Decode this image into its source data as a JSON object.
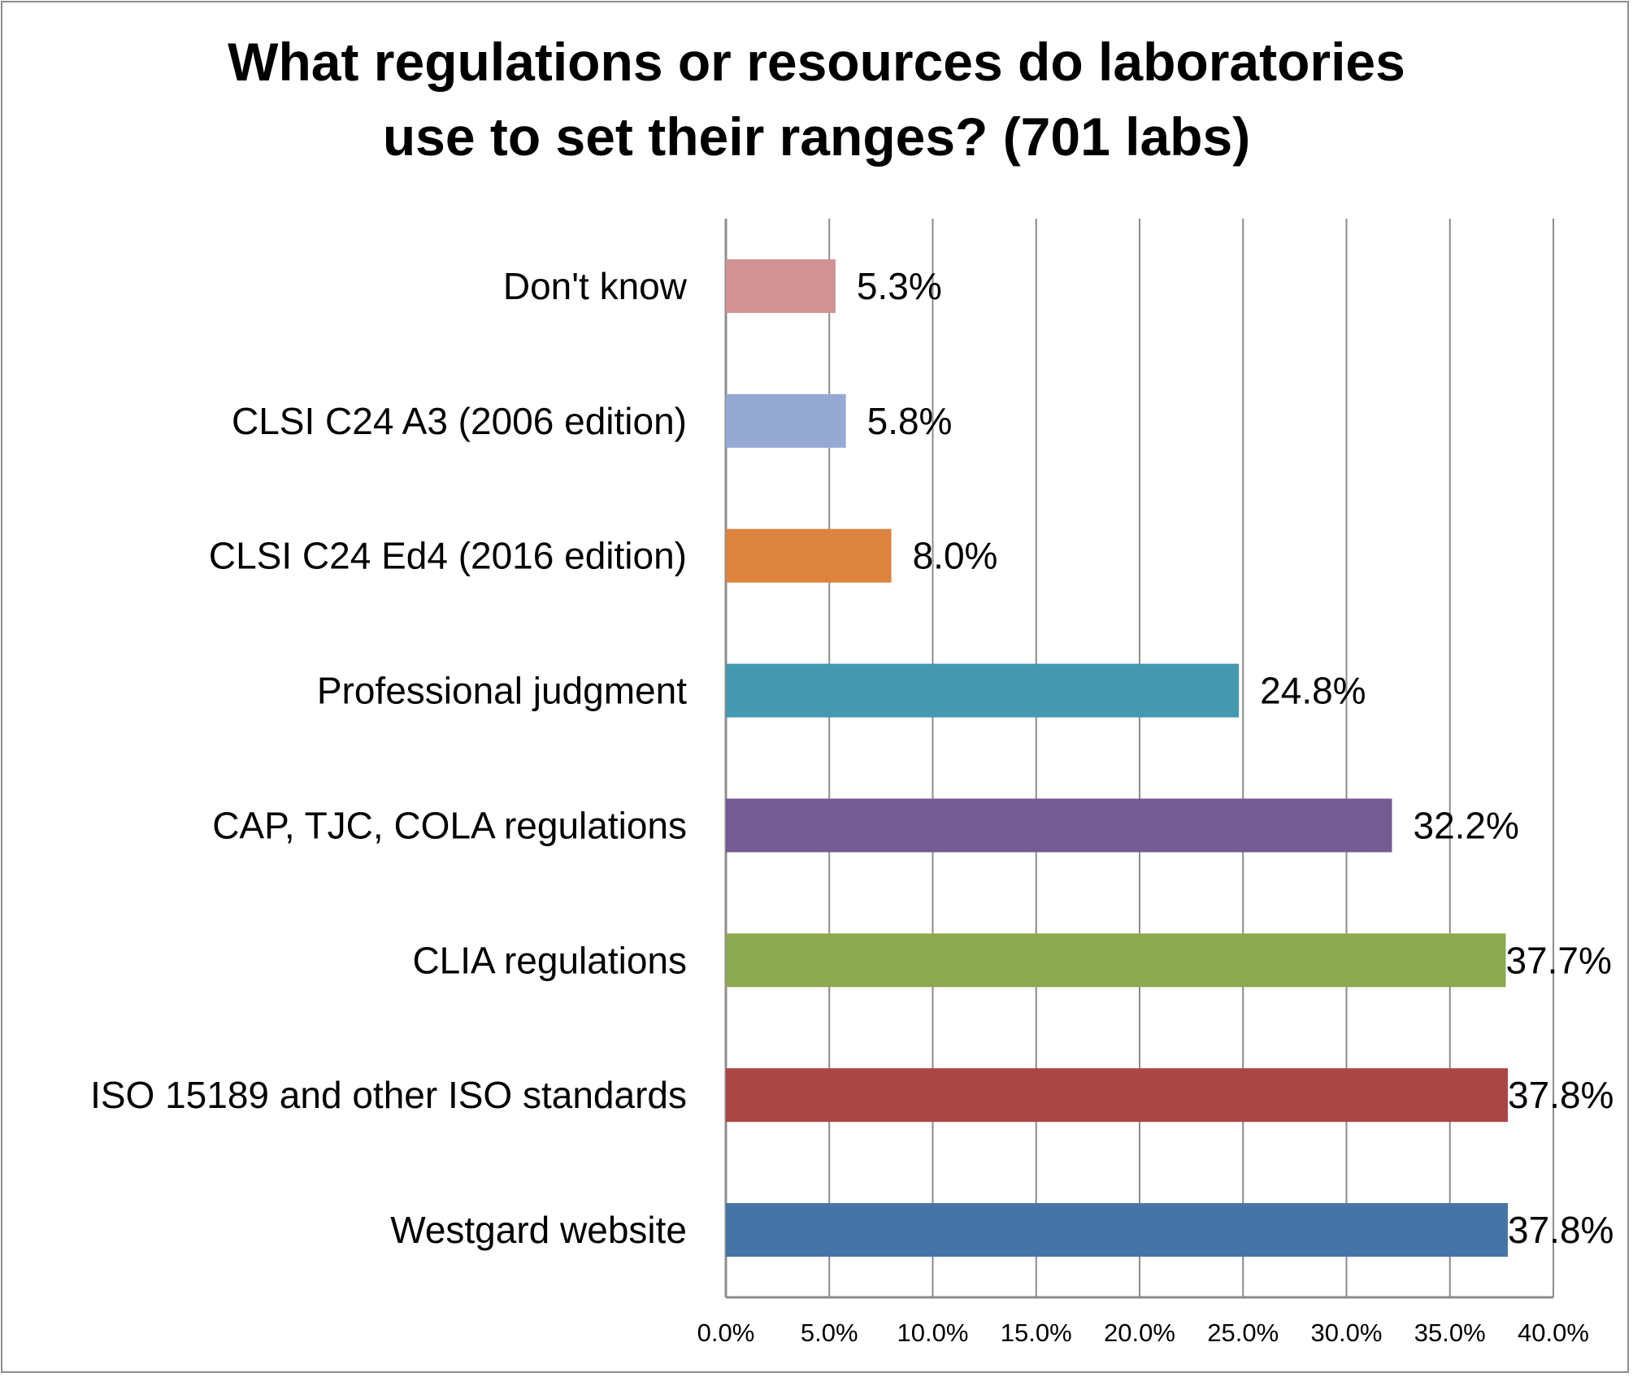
{
  "chart_data": {
    "type": "bar",
    "orientation": "horizontal",
    "title": "What regulations or resources do laboratories use to set their ranges? (701 labs)",
    "title_lines": [
      "What regulations or resources do laboratories",
      "use to set their ranges? (701 labs)"
    ],
    "categories": [
      "Don't know",
      "CLSI C24 A3 (2006 edition)",
      "CLSI C24 Ed4 (2016 edition)",
      "Professional judgment",
      "CAP, TJC, COLA regulations",
      "CLIA regulations",
      "ISO 15189 and other ISO standards",
      "Westgard website"
    ],
    "values": [
      5.3,
      5.8,
      8.0,
      24.8,
      32.2,
      37.7,
      37.8,
      37.8
    ],
    "data_labels": [
      "5.3%",
      "5.8%",
      "8.0%",
      "24.8%",
      "32.2%",
      "37.7%",
      "37.8%",
      "37.8%"
    ],
    "colors": [
      "#d09292",
      "#95a9d3",
      "#dc843e",
      "#4499b0",
      "#745b92",
      "#8ca94f",
      "#aa4644",
      "#4674a8"
    ],
    "xlim": [
      0,
      40
    ],
    "xticks": [
      "0.0%",
      "5.0%",
      "10.0%",
      "15.0%",
      "20.0%",
      "25.0%",
      "30.0%",
      "35.0%",
      "40.0%"
    ],
    "xlabel": "",
    "ylabel": "",
    "grid": "vertical",
    "legend": "none"
  }
}
